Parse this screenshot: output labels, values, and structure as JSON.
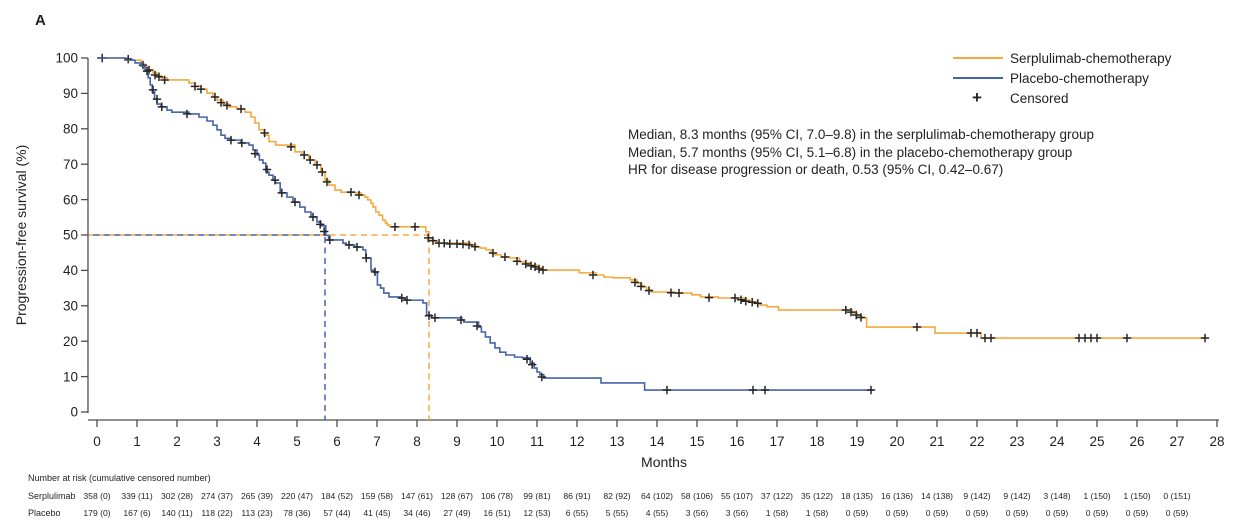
{
  "panel_label": "A",
  "colors": {
    "serplulimab": "#F7A83E",
    "placebo": "#4464AC",
    "censor": "#262626",
    "axis": "#4D4D4D",
    "text": "#231F20"
  },
  "chart_data": {
    "type": "line",
    "subtype": "kaplan-meier-step",
    "title": "",
    "xlabel": "Months",
    "ylabel": "Progression-free survival (%)",
    "xlim": [
      0,
      28
    ],
    "ylim": [
      0,
      100
    ],
    "x_ticks": [
      0,
      1,
      2,
      3,
      4,
      5,
      6,
      7,
      8,
      9,
      10,
      11,
      12,
      13,
      14,
      15,
      16,
      17,
      18,
      19,
      20,
      21,
      22,
      23,
      24,
      25,
      26,
      27,
      28
    ],
    "y_ticks": [
      0,
      10,
      20,
      30,
      40,
      50,
      60,
      70,
      80,
      90,
      100
    ],
    "grid": false,
    "legend_position": "top-right",
    "legend": [
      {
        "label": "Serplulimab-chemotherapy",
        "color": "#F7A83E",
        "marker": "line"
      },
      {
        "label": "Placebo-chemotherapy",
        "color": "#4464AC",
        "marker": "line"
      },
      {
        "label": "Censored",
        "color": "#262626",
        "marker": "plus"
      }
    ],
    "annotations": [
      "Median, 8.3 months (95% CI, 7.0–9.8) in the serplulimab-chemotherapy group",
      "Median, 5.7 months (95% CI, 5.1–6.8) in the placebo-chemotherapy group",
      "HR for disease progression or death, 0.53 (95% CI, 0.42–0.67)"
    ],
    "medians": {
      "serplulimab_months": 8.3,
      "placebo_months": 5.7,
      "survival_pct": 50
    },
    "series": [
      {
        "name": "Serplulimab-chemotherapy",
        "color": "#F7A83E",
        "start": [
          0,
          100
        ],
        "end_month": 27.75,
        "steps": [
          [
            0.75,
            99.4
          ],
          [
            1.1,
            98.3
          ],
          [
            1.2,
            97.4
          ],
          [
            1.3,
            96.6
          ],
          [
            1.4,
            95.8
          ],
          [
            1.5,
            95
          ],
          [
            1.6,
            94.4
          ],
          [
            1.75,
            93.8
          ],
          [
            2.3,
            92.9
          ],
          [
            2.45,
            92
          ],
          [
            2.6,
            91.2
          ],
          [
            2.75,
            90.1
          ],
          [
            2.9,
            89
          ],
          [
            3.0,
            88.1
          ],
          [
            3.15,
            87
          ],
          [
            3.3,
            86.2
          ],
          [
            3.5,
            85.6
          ],
          [
            3.7,
            84.7
          ],
          [
            3.85,
            83.3
          ],
          [
            3.95,
            81.6
          ],
          [
            4.05,
            79.7
          ],
          [
            4.18,
            78.2
          ],
          [
            4.3,
            76.4
          ],
          [
            4.47,
            75.4
          ],
          [
            4.95,
            73.5
          ],
          [
            5.12,
            72.6
          ],
          [
            5.3,
            71.2
          ],
          [
            5.45,
            69.8
          ],
          [
            5.6,
            67.8
          ],
          [
            5.7,
            65.5
          ],
          [
            5.8,
            64.1
          ],
          [
            5.95,
            62.7
          ],
          [
            6.1,
            62.1
          ],
          [
            6.45,
            61.9
          ],
          [
            6.6,
            61.3
          ],
          [
            6.7,
            60.7
          ],
          [
            6.77,
            59.9
          ],
          [
            6.85,
            59
          ],
          [
            6.9,
            57.9
          ],
          [
            6.97,
            56.5
          ],
          [
            7.05,
            55.6
          ],
          [
            7.14,
            54.2
          ],
          [
            7.21,
            53.4
          ],
          [
            7.26,
            52.8
          ],
          [
            7.32,
            52.3
          ],
          [
            8.22,
            50.9
          ],
          [
            8.3,
            49.2
          ],
          [
            8.39,
            48.2
          ],
          [
            8.51,
            47.7
          ],
          [
            9.34,
            47.2
          ],
          [
            9.46,
            46.6
          ],
          [
            9.58,
            46.3
          ],
          [
            9.73,
            45.8
          ],
          [
            9.85,
            44.9
          ],
          [
            9.95,
            44.4
          ],
          [
            10.1,
            43.8
          ],
          [
            10.32,
            43.5
          ],
          [
            10.56,
            42.4
          ],
          [
            10.71,
            42.1
          ],
          [
            10.85,
            41.5
          ],
          [
            11.0,
            40.8
          ],
          [
            11.12,
            40.1
          ],
          [
            12.06,
            39.3
          ],
          [
            12.47,
            38.7
          ],
          [
            12.67,
            38.1
          ],
          [
            12.91,
            37.9
          ],
          [
            13.33,
            37.3
          ],
          [
            13.5,
            36.4
          ],
          [
            13.62,
            35.3
          ],
          [
            13.74,
            34.5
          ],
          [
            13.86,
            33.9
          ],
          [
            14.43,
            33.6
          ],
          [
            14.87,
            33.1
          ],
          [
            15.09,
            32.5
          ],
          [
            15.53,
            32.2
          ],
          [
            16.19,
            31.6
          ],
          [
            16.33,
            31.1
          ],
          [
            16.5,
            30.8
          ],
          [
            16.58,
            30.2
          ],
          [
            16.75,
            29.7
          ],
          [
            17.04,
            28.8
          ],
          [
            18.88,
            28
          ],
          [
            19.0,
            27.1
          ],
          [
            19.12,
            26.6
          ],
          [
            19.24,
            24
          ],
          [
            20.95,
            22.3
          ],
          [
            22.1,
            20.9
          ]
        ],
        "censor_marks": [
          [
            0.13,
            100
          ],
          [
            0.78,
            99.7
          ],
          [
            1.15,
            98
          ],
          [
            1.3,
            96.6
          ],
          [
            1.45,
            95.2
          ],
          [
            1.55,
            94.7
          ],
          [
            1.69,
            93.8
          ],
          [
            2.45,
            92
          ],
          [
            2.6,
            91.2
          ],
          [
            2.95,
            89
          ],
          [
            3.1,
            87.4
          ],
          [
            3.25,
            86.6
          ],
          [
            3.6,
            85.6
          ],
          [
            4.19,
            78.8
          ],
          [
            4.85,
            74.9
          ],
          [
            5.18,
            72.6
          ],
          [
            5.33,
            71.2
          ],
          [
            5.5,
            69.8
          ],
          [
            5.63,
            67.8
          ],
          [
            5.75,
            65
          ],
          [
            6.35,
            62.1
          ],
          [
            6.55,
            61.3
          ],
          [
            7.45,
            52.3
          ],
          [
            7.95,
            52.3
          ],
          [
            8.28,
            49.2
          ],
          [
            8.4,
            48.4
          ],
          [
            8.55,
            47.7
          ],
          [
            8.68,
            47.7
          ],
          [
            8.82,
            47.5
          ],
          [
            9.0,
            47.5
          ],
          [
            9.15,
            47.4
          ],
          [
            9.3,
            47.2
          ],
          [
            9.45,
            46.7
          ],
          [
            9.9,
            44.9
          ],
          [
            10.2,
            43.8
          ],
          [
            10.5,
            42.6
          ],
          [
            10.72,
            41.8
          ],
          [
            10.85,
            41.3
          ],
          [
            10.95,
            41
          ],
          [
            11.05,
            40.4
          ],
          [
            11.15,
            40.1
          ],
          [
            12.4,
            38.7
          ],
          [
            13.45,
            36.6
          ],
          [
            13.6,
            35.5
          ],
          [
            13.8,
            34.3
          ],
          [
            14.35,
            33.7
          ],
          [
            14.55,
            33.6
          ],
          [
            15.3,
            32.3
          ],
          [
            15.95,
            32.2
          ],
          [
            16.1,
            31.7
          ],
          [
            16.22,
            31.3
          ],
          [
            16.38,
            31
          ],
          [
            16.52,
            30.7
          ],
          [
            18.72,
            28.8
          ],
          [
            18.85,
            28.2
          ],
          [
            18.98,
            27.4
          ],
          [
            19.1,
            26.7
          ],
          [
            20.5,
            24
          ],
          [
            21.85,
            22.3
          ],
          [
            22.0,
            22.3
          ],
          [
            22.2,
            20.9
          ],
          [
            22.35,
            20.9
          ],
          [
            24.55,
            20.9
          ],
          [
            24.7,
            20.9
          ],
          [
            24.85,
            20.9
          ],
          [
            25.0,
            20.9
          ],
          [
            25.75,
            20.9
          ],
          [
            27.7,
            20.9
          ]
        ]
      },
      {
        "name": "Placebo-chemotherapy",
        "color": "#4464AC",
        "start": [
          0,
          100
        ],
        "end_month": 19.4,
        "steps": [
          [
            0.7,
            99.4
          ],
          [
            0.95,
            98.6
          ],
          [
            1.1,
            97.7
          ],
          [
            1.2,
            96.3
          ],
          [
            1.28,
            94.4
          ],
          [
            1.33,
            92.4
          ],
          [
            1.38,
            90.4
          ],
          [
            1.44,
            88.4
          ],
          [
            1.5,
            87
          ],
          [
            1.6,
            86.2
          ],
          [
            1.75,
            85.3
          ],
          [
            1.87,
            84.7
          ],
          [
            2.3,
            84.2
          ],
          [
            2.55,
            83.3
          ],
          [
            2.75,
            82.2
          ],
          [
            2.9,
            81
          ],
          [
            3.0,
            79.7
          ],
          [
            3.1,
            78.2
          ],
          [
            3.2,
            77.3
          ],
          [
            3.35,
            76.8
          ],
          [
            3.6,
            76
          ],
          [
            3.8,
            75.4
          ],
          [
            3.9,
            74
          ],
          [
            4.0,
            72.6
          ],
          [
            4.06,
            71.2
          ],
          [
            4.15,
            70.3
          ],
          [
            4.22,
            67.8
          ],
          [
            4.3,
            66.9
          ],
          [
            4.4,
            65.5
          ],
          [
            4.46,
            64.7
          ],
          [
            4.58,
            61.9
          ],
          [
            4.75,
            60.7
          ],
          [
            4.9,
            59.3
          ],
          [
            5.07,
            57.9
          ],
          [
            5.2,
            56.5
          ],
          [
            5.35,
            55.1
          ],
          [
            5.5,
            53.7
          ],
          [
            5.6,
            52.6
          ],
          [
            5.72,
            49.9
          ],
          [
            5.79,
            48.6
          ],
          [
            6.15,
            47.7
          ],
          [
            6.23,
            47.2
          ],
          [
            6.44,
            46.6
          ],
          [
            6.65,
            45.8
          ],
          [
            6.72,
            43.5
          ],
          [
            6.85,
            40.1
          ],
          [
            6.93,
            39.3
          ],
          [
            7.01,
            35.9
          ],
          [
            7.09,
            35
          ],
          [
            7.17,
            33.6
          ],
          [
            7.3,
            32.5
          ],
          [
            7.58,
            32.2
          ],
          [
            7.7,
            31.6
          ],
          [
            8.15,
            30.8
          ],
          [
            8.24,
            27.4
          ],
          [
            8.36,
            26.6
          ],
          [
            9.12,
            26
          ],
          [
            9.17,
            25.4
          ],
          [
            9.54,
            24
          ],
          [
            9.61,
            22.6
          ],
          [
            9.71,
            21.2
          ],
          [
            9.83,
            19.5
          ],
          [
            9.95,
            18.1
          ],
          [
            10.07,
            16.9
          ],
          [
            10.22,
            16.1
          ],
          [
            10.44,
            15.5
          ],
          [
            10.64,
            15.3
          ],
          [
            10.83,
            13.8
          ],
          [
            10.93,
            12.4
          ],
          [
            11.0,
            11.3
          ],
          [
            11.07,
            10.5
          ],
          [
            11.17,
            9.6
          ],
          [
            12.6,
            8.2
          ],
          [
            13.69,
            6.2
          ]
        ],
        "censor_marks": [
          [
            1.25,
            96.3
          ],
          [
            1.4,
            91
          ],
          [
            1.5,
            88.4
          ],
          [
            1.62,
            86.2
          ],
          [
            2.25,
            84.2
          ],
          [
            3.35,
            76.8
          ],
          [
            3.62,
            76
          ],
          [
            3.95,
            73
          ],
          [
            4.25,
            68.5
          ],
          [
            4.45,
            65.5
          ],
          [
            4.62,
            61.9
          ],
          [
            4.95,
            59.3
          ],
          [
            5.4,
            55.1
          ],
          [
            5.58,
            53
          ],
          [
            5.68,
            51
          ],
          [
            5.82,
            48.6
          ],
          [
            6.3,
            47.2
          ],
          [
            6.5,
            46.6
          ],
          [
            6.73,
            43.5
          ],
          [
            6.95,
            39.6
          ],
          [
            7.62,
            32.2
          ],
          [
            7.75,
            31.6
          ],
          [
            8.3,
            27.2
          ],
          [
            8.45,
            26.6
          ],
          [
            9.1,
            26
          ],
          [
            9.5,
            24.3
          ],
          [
            10.75,
            14.9
          ],
          [
            10.88,
            13.4
          ],
          [
            11.12,
            9.9
          ],
          [
            14.25,
            6.2
          ],
          [
            16.4,
            6.2
          ],
          [
            16.7,
            6.2
          ],
          [
            19.35,
            6.2
          ]
        ]
      }
    ],
    "risk_table": {
      "header": "Number at risk (cumulative censored number)",
      "months": [
        0,
        1,
        2,
        3,
        4,
        5,
        6,
        7,
        8,
        9,
        10,
        11,
        12,
        13,
        14,
        15,
        16,
        17,
        18,
        19,
        20,
        21,
        22,
        23,
        24,
        25,
        26,
        27
      ],
      "rows": [
        {
          "label": "Serplulimab",
          "values": [
            "358 (0)",
            "339 (11)",
            "302 (28)",
            "274 (37)",
            "265 (39)",
            "220 (47)",
            "184 (52)",
            "159 (58)",
            "147 (61)",
            "128 (67)",
            "106 (78)",
            "99 (81)",
            "86 (91)",
            "82 (92)",
            "64 (102)",
            "58 (106)",
            "55 (107)",
            "37 (122)",
            "35 (122)",
            "18 (135)",
            "16 (136)",
            "14 (138)",
            "9 (142)",
            "9 (142)",
            "3 (148)",
            "1 (150)",
            "1 (150)",
            "0 (151)"
          ]
        },
        {
          "label": "Placebo",
          "values": [
            "179 (0)",
            "167 (6)",
            "140 (11)",
            "118 (22)",
            "113 (23)",
            "78 (36)",
            "57 (44)",
            "41 (45)",
            "34 (46)",
            "27 (49)",
            "16 (51)",
            "12 (53)",
            "6 (55)",
            "5 (55)",
            "4 (55)",
            "3 (56)",
            "3 (56)",
            "1 (58)",
            "1 (58)",
            "0 (59)",
            "0 (59)",
            "0 (59)",
            "0 (59)",
            "0 (59)",
            "0 (59)",
            "0 (59)",
            "0 (59)",
            "0 (59)"
          ]
        }
      ]
    }
  }
}
